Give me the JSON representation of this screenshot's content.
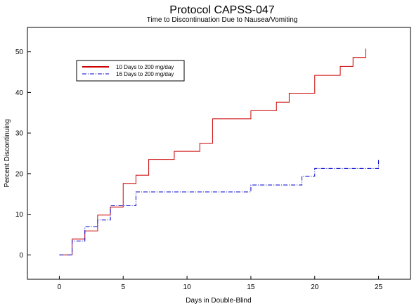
{
  "chart_data": {
    "type": "line",
    "title": "Protocol CAPSS-047",
    "subtitle": "Time to Discontinuation Due to Nausea/Vomiting",
    "xlabel": "Days in Double-Blind",
    "ylabel": "Percent Discontinuing",
    "xlim": [
      -2.5,
      27.5
    ],
    "ylim": [
      -6,
      56
    ],
    "x_ticks": [
      0,
      5,
      10,
      15,
      20,
      25
    ],
    "y_ticks": [
      0,
      10,
      20,
      30,
      40,
      50
    ],
    "grid": false,
    "legend_position": "top-left",
    "series": [
      {
        "name": "10 Days to 200 mg/day",
        "style": "solid",
        "color": "#cc0000",
        "step": true,
        "x": [
          0,
          1,
          2,
          3,
          4,
          5,
          6,
          7,
          9,
          11,
          12,
          15,
          17,
          18,
          20,
          22,
          23,
          24
        ],
        "y": [
          0,
          3.9,
          5.9,
          9.8,
          11.8,
          17.6,
          19.6,
          23.5,
          25.5,
          27.5,
          33.5,
          35.5,
          37.6,
          39.8,
          44.2,
          46.4,
          48.6,
          50.8
        ]
      },
      {
        "name": "16 Days to 200 mg/day",
        "style": "dashdot",
        "color": "#0000cc",
        "step": true,
        "x": [
          0,
          1,
          2,
          3,
          4,
          6,
          15,
          19,
          20,
          25
        ],
        "y": [
          0,
          3.4,
          6.9,
          8.6,
          12.1,
          15.5,
          17.2,
          19.4,
          21.3,
          23.4
        ]
      }
    ]
  }
}
